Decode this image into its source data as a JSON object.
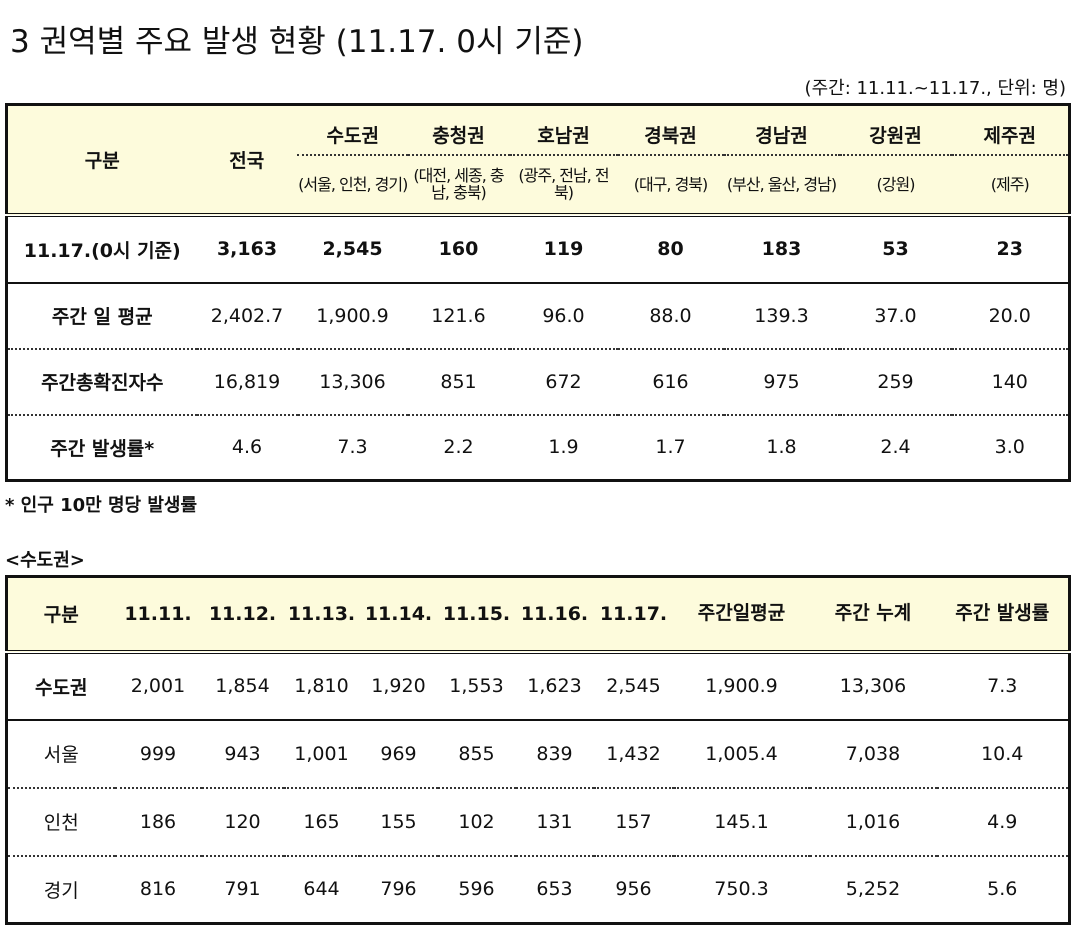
{
  "title": "3  권역별 주요 발생 현황 (11.17. 0시 기준)",
  "unit_note": "(주간: 11.11.~11.17., 단위: 명)",
  "table1": {
    "header": {
      "label": "구분",
      "total": "전국",
      "regions": [
        {
          "name": "수도권",
          "sub": "(서울, 인천, 경기)"
        },
        {
          "name": "충청권",
          "sub": "(대전, 세종, 충남, 충북)"
        },
        {
          "name": "호남권",
          "sub": "(광주, 전남, 전북)"
        },
        {
          "name": "경북권",
          "sub": "(대구, 경북)"
        },
        {
          "name": "경남권",
          "sub": "(부산, 울산, 경남)"
        },
        {
          "name": "강원권",
          "sub": "(강원)"
        },
        {
          "name": "제주권",
          "sub": "(제주)"
        }
      ]
    },
    "rows": [
      [
        "11.17.(0시 기준)",
        "3,163",
        "2,545",
        "160",
        "119",
        "80",
        "183",
        "53",
        "23"
      ],
      [
        "주간 일 평균",
        "2,402.7",
        "1,900.9",
        "121.6",
        "96.0",
        "88.0",
        "139.3",
        "37.0",
        "20.0"
      ],
      [
        "주간총확진자수",
        "16,819",
        "13,306",
        "851",
        "672",
        "616",
        "975",
        "259",
        "140"
      ],
      [
        "주간 발생률*",
        "4.6",
        "7.3",
        "2.2",
        "1.9",
        "1.7",
        "1.8",
        "2.4",
        "3.0"
      ]
    ]
  },
  "footnote": "* 인구 10만 명당 발생률",
  "section_label": "<수도권>",
  "table2": {
    "header": [
      "구분",
      "11.11.",
      "11.12.",
      "11.13.",
      "11.14.",
      "11.15.",
      "11.16.",
      "11.17.",
      "주간일평균",
      "주간 누계",
      "주간 발생률"
    ],
    "rows": [
      [
        "수도권",
        "2,001",
        "1,854",
        "1,810",
        "1,920",
        "1,553",
        "1,623",
        "2,545",
        "1,900.9",
        "13,306",
        "7.3"
      ],
      [
        "서울",
        "999",
        "943",
        "1,001",
        "969",
        "855",
        "839",
        "1,432",
        "1,005.4",
        "7,038",
        "10.4"
      ],
      [
        "인천",
        "186",
        "120",
        "165",
        "155",
        "102",
        "131",
        "157",
        "145.1",
        "1,016",
        "4.9"
      ],
      [
        "경기",
        "816",
        "791",
        "644",
        "796",
        "596",
        "653",
        "956",
        "750.3",
        "5,252",
        "5.6"
      ]
    ]
  }
}
